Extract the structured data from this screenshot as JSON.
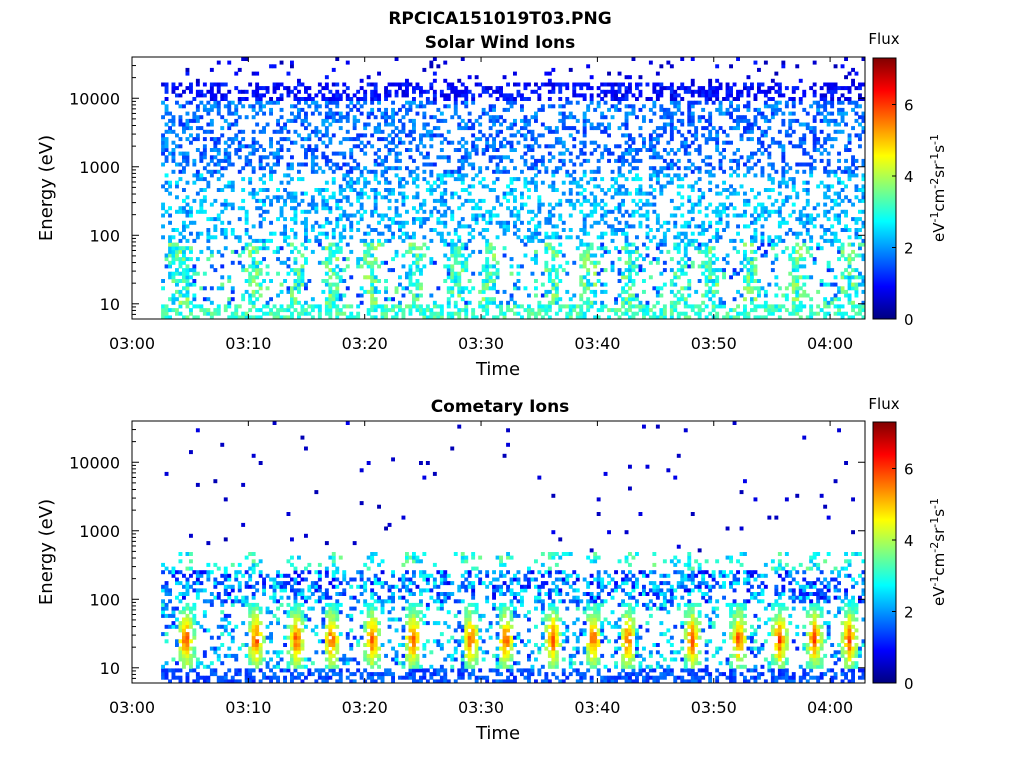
{
  "figure": {
    "title": "RPCICA151019T03.PNG"
  },
  "chart_data": [
    {
      "type": "heatmap",
      "title": "Solar Wind Ions",
      "xlabel": "Time",
      "ylabel": "Energy (eV)",
      "xticks": [
        "03:00",
        "03:10",
        "03:20",
        "03:30",
        "03:40",
        "03:50",
        "04:00"
      ],
      "xlim_minutes": [
        0,
        63
      ],
      "yscale": "log",
      "yticks": [
        "10",
        "100",
        "1000",
        "10000"
      ],
      "ylim": [
        6,
        40000
      ],
      "data_start_minutes": 2.5,
      "colorbar": {
        "title": "Flux",
        "label": "eV-1cm-2sr-1s-1",
        "ticks": [
          "0",
          "2",
          "4",
          "6"
        ],
        "range": [
          0,
          7.3
        ]
      },
      "bursts_minutes": [
        3.5,
        4.5,
        10.3,
        14,
        17,
        20.5,
        24.3,
        27.8,
        30.5,
        36,
        39,
        42.5,
        47,
        49.5,
        53,
        57,
        61.5
      ]
    },
    {
      "type": "heatmap",
      "title": "Cometary Ions",
      "xlabel": "Time",
      "ylabel": "Energy (eV)",
      "xticks": [
        "03:00",
        "03:10",
        "03:20",
        "03:30",
        "03:40",
        "03:50",
        "04:00"
      ],
      "xlim_minutes": [
        0,
        63
      ],
      "yscale": "log",
      "yticks": [
        "10",
        "100",
        "1000",
        "10000"
      ],
      "ylim": [
        6,
        40000
      ],
      "data_start_minutes": 2.5,
      "colorbar": {
        "title": "Flux",
        "label": "eV-1cm-2sr-1s-1",
        "ticks": [
          "0",
          "2",
          "4",
          "6"
        ],
        "range": [
          0,
          7.3
        ]
      },
      "bursts_minutes": [
        4.5,
        10.5,
        14,
        17,
        20.5,
        24,
        29,
        32,
        36,
        39.5,
        42.5,
        48,
        52,
        55.5,
        58.5,
        61.5
      ]
    }
  ]
}
